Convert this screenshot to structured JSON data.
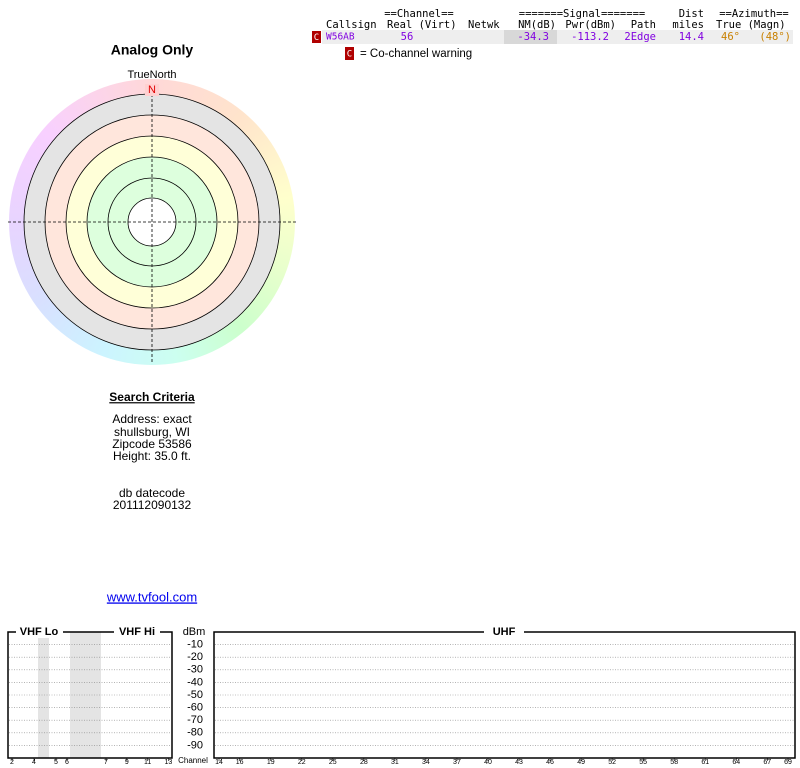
{
  "header": {
    "title": "Analog Only"
  },
  "compass": {
    "label": "TrueNorth",
    "north": "N"
  },
  "search": {
    "title": "Search Criteria",
    "lines": [
      "Address: exact",
      "shullsburg, WI",
      "Zipcode 53586",
      "Height: 35.0 ft."
    ],
    "datecode_label": "db datecode",
    "datecode": "201112090132"
  },
  "link": "www.tvfool.com",
  "table": {
    "group_headers": [
      "==Channel==",
      "=======Signal=======",
      "Dist",
      "==Azimuth=="
    ],
    "columns": [
      "Callsign",
      "Real (Virt)",
      "Netwk",
      "NM(dB)",
      "Pwr(dBm)",
      "Path",
      "miles",
      "True (Magn)"
    ],
    "rows": [
      {
        "flag": "C",
        "callsign": "W56AB",
        "channel": "56",
        "nm": "-34.3",
        "pwr": "-113.2",
        "path": "2Edge",
        "dist": "14.4",
        "true": "46°",
        "magn": "(48°)"
      }
    ]
  },
  "legend": {
    "flag": "C",
    "text": "= Co-channel warning"
  },
  "spectrum": {
    "bands": [
      "VHF Lo",
      "VHF Hi",
      "UHF"
    ],
    "unit": "dBm",
    "ylim": [
      0,
      -100
    ],
    "yticks": [
      -10,
      -20,
      -30,
      -40,
      -50,
      -60,
      -70,
      -80,
      -90
    ],
    "x_label": "Channel",
    "vhf_lo_channels": [
      2,
      4,
      5,
      6
    ],
    "vhf_hi_channels": [
      7,
      9,
      11,
      13
    ],
    "uhf_channels": [
      14,
      16,
      19,
      22,
      25,
      28,
      31,
      34,
      37,
      40,
      43,
      46,
      49,
      52,
      55,
      58,
      61,
      64,
      67,
      69
    ]
  }
}
